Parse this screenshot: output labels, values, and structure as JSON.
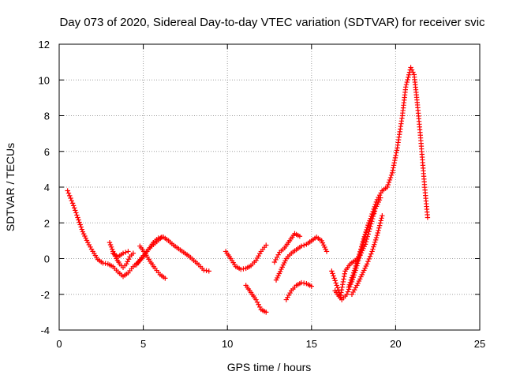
{
  "chart_data": {
    "type": "scatter",
    "title": "Day 073 of 2020, Sidereal Day-to-day VTEC variation (SDTVAR) for receiver svic",
    "xlabel": "GPS time / hours",
    "ylabel": "SDTVAR / TECUs",
    "xlim": [
      0,
      25
    ],
    "ylim": [
      -4,
      12
    ],
    "xticks": [
      0,
      5,
      10,
      15,
      20,
      25
    ],
    "yticks": [
      -4,
      -2,
      0,
      2,
      4,
      6,
      8,
      10,
      12
    ],
    "grid": true,
    "marker": "+",
    "series": [
      {
        "name": "SDTVAR",
        "color": "#ff0000",
        "segments": [
          [
            [
              0.5,
              3.8
            ],
            [
              0.8,
              3.1
            ],
            [
              1.1,
              2.3
            ],
            [
              1.4,
              1.5
            ],
            [
              1.7,
              0.9
            ],
            [
              2.0,
              0.4
            ],
            [
              2.3,
              -0.05
            ],
            [
              2.6,
              -0.25
            ],
            [
              2.9,
              -0.3
            ],
            [
              3.2,
              -0.45
            ],
            [
              3.5,
              -0.75
            ],
            [
              3.8,
              -1.0
            ],
            [
              4.1,
              -0.8
            ],
            [
              4.4,
              -0.45
            ],
            [
              4.7,
              -0.2
            ],
            [
              5.0,
              0.1
            ],
            [
              5.3,
              0.5
            ],
            [
              5.6,
              0.9
            ],
            [
              5.9,
              1.15
            ],
            [
              6.2,
              1.2
            ],
            [
              6.5,
              1.0
            ],
            [
              6.8,
              0.75
            ],
            [
              7.1,
              0.55
            ],
            [
              7.4,
              0.35
            ],
            [
              7.7,
              0.15
            ],
            [
              8.0,
              -0.1
            ],
            [
              8.3,
              -0.35
            ],
            [
              8.6,
              -0.65
            ],
            [
              8.9,
              -0.7
            ]
          ],
          [
            [
              3.0,
              0.9
            ],
            [
              3.2,
              0.4
            ],
            [
              3.4,
              0.0
            ],
            [
              3.6,
              -0.3
            ],
            [
              3.8,
              -0.5
            ],
            [
              4.0,
              -0.3
            ],
            [
              4.2,
              0.1
            ],
            [
              4.4,
              0.3
            ]
          ],
          [
            [
              3.2,
              0.3
            ],
            [
              3.5,
              0.1
            ],
            [
              3.8,
              0.3
            ],
            [
              4.1,
              0.4
            ]
          ],
          [
            [
              4.8,
              0.7
            ],
            [
              5.1,
              0.3
            ],
            [
              5.4,
              -0.15
            ],
            [
              5.7,
              -0.55
            ],
            [
              6.0,
              -0.9
            ],
            [
              6.3,
              -1.1
            ]
          ],
          [
            [
              4.6,
              -0.35
            ],
            [
              4.9,
              0.05
            ],
            [
              5.2,
              0.4
            ],
            [
              5.5,
              0.7
            ],
            [
              5.8,
              0.95
            ],
            [
              6.1,
              1.2
            ]
          ],
          [
            [
              9.9,
              0.4
            ],
            [
              10.2,
              0.0
            ],
            [
              10.5,
              -0.45
            ],
            [
              10.8,
              -0.6
            ],
            [
              11.1,
              -0.55
            ],
            [
              11.4,
              -0.4
            ],
            [
              11.7,
              -0.1
            ],
            [
              12.0,
              0.4
            ],
            [
              12.3,
              0.75
            ]
          ],
          [
            [
              11.1,
              -1.5
            ],
            [
              11.4,
              -1.9
            ],
            [
              11.7,
              -2.3
            ],
            [
              12.0,
              -2.85
            ],
            [
              12.3,
              -3.0
            ]
          ],
          [
            [
              12.8,
              -0.2
            ],
            [
              13.1,
              0.35
            ],
            [
              13.4,
              0.6
            ],
            [
              13.7,
              1.0
            ],
            [
              14.0,
              1.4
            ],
            [
              14.3,
              1.25
            ]
          ],
          [
            [
              12.9,
              -1.2
            ],
            [
              13.2,
              -0.6
            ],
            [
              13.5,
              0.0
            ],
            [
              13.8,
              0.3
            ],
            [
              14.1,
              0.5
            ],
            [
              14.4,
              0.7
            ],
            [
              14.7,
              0.8
            ],
            [
              15.0,
              1.0
            ],
            [
              15.3,
              1.2
            ],
            [
              15.6,
              1.0
            ],
            [
              15.9,
              0.4
            ]
          ],
          [
            [
              13.5,
              -2.3
            ],
            [
              13.8,
              -1.8
            ],
            [
              14.1,
              -1.5
            ],
            [
              14.4,
              -1.35
            ],
            [
              14.7,
              -1.4
            ],
            [
              15.0,
              -1.55
            ]
          ],
          [
            [
              16.2,
              -0.7
            ],
            [
              16.5,
              -1.5
            ],
            [
              16.8,
              -2.3
            ],
            [
              17.1,
              -2.0
            ],
            [
              17.4,
              -1.3
            ],
            [
              17.7,
              -0.4
            ],
            [
              18.0,
              0.6
            ],
            [
              18.3,
              1.6
            ],
            [
              18.6,
              2.5
            ],
            [
              18.9,
              3.3
            ],
            [
              19.2,
              3.8
            ],
            [
              19.5,
              4.0
            ],
            [
              19.8,
              4.8
            ],
            [
              20.1,
              6.2
            ],
            [
              20.4,
              8.0
            ],
            [
              20.6,
              9.6
            ],
            [
              20.9,
              10.7
            ],
            [
              21.1,
              10.3
            ],
            [
              21.3,
              8.6
            ],
            [
              21.5,
              6.6
            ],
            [
              21.7,
              4.3
            ],
            [
              21.9,
              2.3
            ]
          ],
          [
            [
              16.4,
              -1.8
            ],
            [
              16.7,
              -2.2
            ],
            [
              17.0,
              -0.7
            ],
            [
              17.3,
              -0.3
            ],
            [
              17.6,
              -0.1
            ],
            [
              17.9,
              0.2
            ],
            [
              18.2,
              0.8
            ],
            [
              18.5,
              1.8
            ],
            [
              18.8,
              2.8
            ],
            [
              19.1,
              3.4
            ]
          ],
          [
            [
              17.2,
              -1.6
            ],
            [
              17.5,
              -0.8
            ],
            [
              17.8,
              0.1
            ],
            [
              18.1,
              1.1
            ],
            [
              18.4,
              2.0
            ],
            [
              18.7,
              2.6
            ]
          ],
          [
            [
              17.4,
              -2.0
            ],
            [
              17.7,
              -1.5
            ],
            [
              18.0,
              -0.9
            ],
            [
              18.3,
              -0.3
            ],
            [
              18.6,
              0.4
            ],
            [
              18.9,
              1.3
            ],
            [
              19.2,
              2.4
            ]
          ]
        ]
      }
    ]
  }
}
